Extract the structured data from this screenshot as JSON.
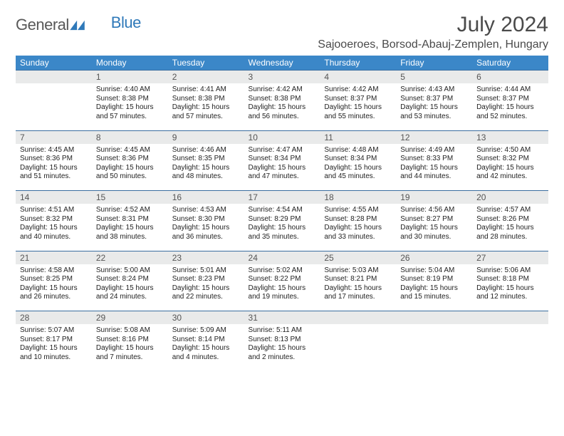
{
  "logo": {
    "text_general": "General",
    "text_blue": "Blue",
    "mark_color": "#2f79b9"
  },
  "title": "July 2024",
  "subtitle": "Sajooeroes, Borsod-Abauj-Zemplen, Hungary",
  "colors": {
    "header_bg": "#3b87c8",
    "header_text": "#ffffff",
    "daynum_bg": "#e9eaea",
    "divider": "#3b6ea0",
    "body_text": "#222222",
    "title_text": "#4a4a4a"
  },
  "day_headers": [
    "Sunday",
    "Monday",
    "Tuesday",
    "Wednesday",
    "Thursday",
    "Friday",
    "Saturday"
  ],
  "weeks": [
    [
      {
        "n": "",
        "lines": []
      },
      {
        "n": "1",
        "lines": [
          "Sunrise: 4:40 AM",
          "Sunset: 8:38 PM",
          "Daylight: 15 hours",
          "and 57 minutes."
        ]
      },
      {
        "n": "2",
        "lines": [
          "Sunrise: 4:41 AM",
          "Sunset: 8:38 PM",
          "Daylight: 15 hours",
          "and 57 minutes."
        ]
      },
      {
        "n": "3",
        "lines": [
          "Sunrise: 4:42 AM",
          "Sunset: 8:38 PM",
          "Daylight: 15 hours",
          "and 56 minutes."
        ]
      },
      {
        "n": "4",
        "lines": [
          "Sunrise: 4:42 AM",
          "Sunset: 8:37 PM",
          "Daylight: 15 hours",
          "and 55 minutes."
        ]
      },
      {
        "n": "5",
        "lines": [
          "Sunrise: 4:43 AM",
          "Sunset: 8:37 PM",
          "Daylight: 15 hours",
          "and 53 minutes."
        ]
      },
      {
        "n": "6",
        "lines": [
          "Sunrise: 4:44 AM",
          "Sunset: 8:37 PM",
          "Daylight: 15 hours",
          "and 52 minutes."
        ]
      }
    ],
    [
      {
        "n": "7",
        "lines": [
          "Sunrise: 4:45 AM",
          "Sunset: 8:36 PM",
          "Daylight: 15 hours",
          "and 51 minutes."
        ]
      },
      {
        "n": "8",
        "lines": [
          "Sunrise: 4:45 AM",
          "Sunset: 8:36 PM",
          "Daylight: 15 hours",
          "and 50 minutes."
        ]
      },
      {
        "n": "9",
        "lines": [
          "Sunrise: 4:46 AM",
          "Sunset: 8:35 PM",
          "Daylight: 15 hours",
          "and 48 minutes."
        ]
      },
      {
        "n": "10",
        "lines": [
          "Sunrise: 4:47 AM",
          "Sunset: 8:34 PM",
          "Daylight: 15 hours",
          "and 47 minutes."
        ]
      },
      {
        "n": "11",
        "lines": [
          "Sunrise: 4:48 AM",
          "Sunset: 8:34 PM",
          "Daylight: 15 hours",
          "and 45 minutes."
        ]
      },
      {
        "n": "12",
        "lines": [
          "Sunrise: 4:49 AM",
          "Sunset: 8:33 PM",
          "Daylight: 15 hours",
          "and 44 minutes."
        ]
      },
      {
        "n": "13",
        "lines": [
          "Sunrise: 4:50 AM",
          "Sunset: 8:32 PM",
          "Daylight: 15 hours",
          "and 42 minutes."
        ]
      }
    ],
    [
      {
        "n": "14",
        "lines": [
          "Sunrise: 4:51 AM",
          "Sunset: 8:32 PM",
          "Daylight: 15 hours",
          "and 40 minutes."
        ]
      },
      {
        "n": "15",
        "lines": [
          "Sunrise: 4:52 AM",
          "Sunset: 8:31 PM",
          "Daylight: 15 hours",
          "and 38 minutes."
        ]
      },
      {
        "n": "16",
        "lines": [
          "Sunrise: 4:53 AM",
          "Sunset: 8:30 PM",
          "Daylight: 15 hours",
          "and 36 minutes."
        ]
      },
      {
        "n": "17",
        "lines": [
          "Sunrise: 4:54 AM",
          "Sunset: 8:29 PM",
          "Daylight: 15 hours",
          "and 35 minutes."
        ]
      },
      {
        "n": "18",
        "lines": [
          "Sunrise: 4:55 AM",
          "Sunset: 8:28 PM",
          "Daylight: 15 hours",
          "and 33 minutes."
        ]
      },
      {
        "n": "19",
        "lines": [
          "Sunrise: 4:56 AM",
          "Sunset: 8:27 PM",
          "Daylight: 15 hours",
          "and 30 minutes."
        ]
      },
      {
        "n": "20",
        "lines": [
          "Sunrise: 4:57 AM",
          "Sunset: 8:26 PM",
          "Daylight: 15 hours",
          "and 28 minutes."
        ]
      }
    ],
    [
      {
        "n": "21",
        "lines": [
          "Sunrise: 4:58 AM",
          "Sunset: 8:25 PM",
          "Daylight: 15 hours",
          "and 26 minutes."
        ]
      },
      {
        "n": "22",
        "lines": [
          "Sunrise: 5:00 AM",
          "Sunset: 8:24 PM",
          "Daylight: 15 hours",
          "and 24 minutes."
        ]
      },
      {
        "n": "23",
        "lines": [
          "Sunrise: 5:01 AM",
          "Sunset: 8:23 PM",
          "Daylight: 15 hours",
          "and 22 minutes."
        ]
      },
      {
        "n": "24",
        "lines": [
          "Sunrise: 5:02 AM",
          "Sunset: 8:22 PM",
          "Daylight: 15 hours",
          "and 19 minutes."
        ]
      },
      {
        "n": "25",
        "lines": [
          "Sunrise: 5:03 AM",
          "Sunset: 8:21 PM",
          "Daylight: 15 hours",
          "and 17 minutes."
        ]
      },
      {
        "n": "26",
        "lines": [
          "Sunrise: 5:04 AM",
          "Sunset: 8:19 PM",
          "Daylight: 15 hours",
          "and 15 minutes."
        ]
      },
      {
        "n": "27",
        "lines": [
          "Sunrise: 5:06 AM",
          "Sunset: 8:18 PM",
          "Daylight: 15 hours",
          "and 12 minutes."
        ]
      }
    ],
    [
      {
        "n": "28",
        "lines": [
          "Sunrise: 5:07 AM",
          "Sunset: 8:17 PM",
          "Daylight: 15 hours",
          "and 10 minutes."
        ]
      },
      {
        "n": "29",
        "lines": [
          "Sunrise: 5:08 AM",
          "Sunset: 8:16 PM",
          "Daylight: 15 hours",
          "and 7 minutes."
        ]
      },
      {
        "n": "30",
        "lines": [
          "Sunrise: 5:09 AM",
          "Sunset: 8:14 PM",
          "Daylight: 15 hours",
          "and 4 minutes."
        ]
      },
      {
        "n": "31",
        "lines": [
          "Sunrise: 5:11 AM",
          "Sunset: 8:13 PM",
          "Daylight: 15 hours",
          "and 2 minutes."
        ]
      },
      {
        "n": "",
        "lines": []
      },
      {
        "n": "",
        "lines": []
      },
      {
        "n": "",
        "lines": []
      }
    ]
  ]
}
